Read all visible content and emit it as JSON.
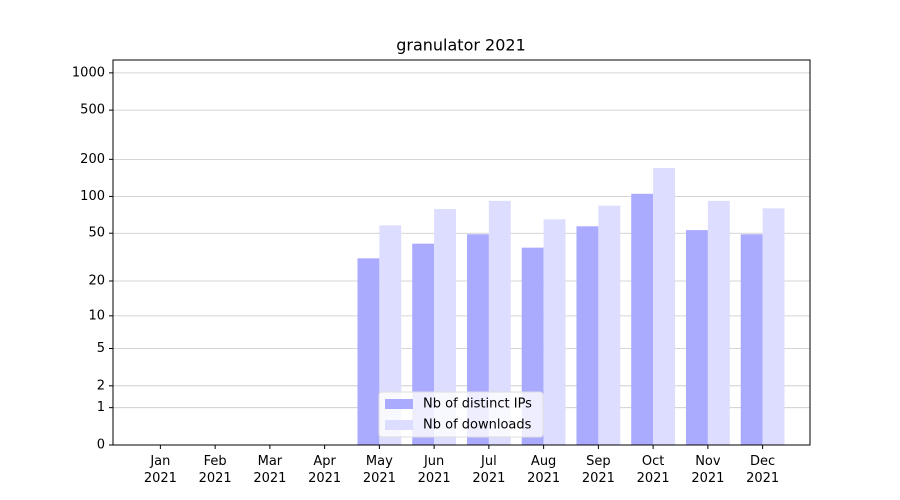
{
  "chart_data": {
    "type": "bar",
    "title": "granulator 2021",
    "categories": [
      "Jan 2021",
      "Feb 2021",
      "Mar 2021",
      "Apr 2021",
      "May 2021",
      "Jun 2021",
      "Jul 2021",
      "Aug 2021",
      "Sep 2021",
      "Oct 2021",
      "Nov 2021",
      "Dec 2021"
    ],
    "series": [
      {
        "name": "Nb of distinct IPs",
        "color": "#aaaaff",
        "values": [
          0,
          0,
          0,
          0,
          31,
          41,
          49,
          38,
          57,
          105,
          53,
          49
        ]
      },
      {
        "name": "Nb of downloads",
        "color": "#ddddff",
        "values": [
          0,
          0,
          0,
          0,
          58,
          79,
          92,
          65,
          84,
          170,
          92,
          80
        ]
      }
    ],
    "yscale": "log1p",
    "ylim": [
      0,
      1270
    ],
    "yticks": [
      0,
      1,
      2,
      5,
      10,
      20,
      50,
      100,
      200,
      500,
      1000
    ],
    "grid": true,
    "legend": "lower center"
  }
}
